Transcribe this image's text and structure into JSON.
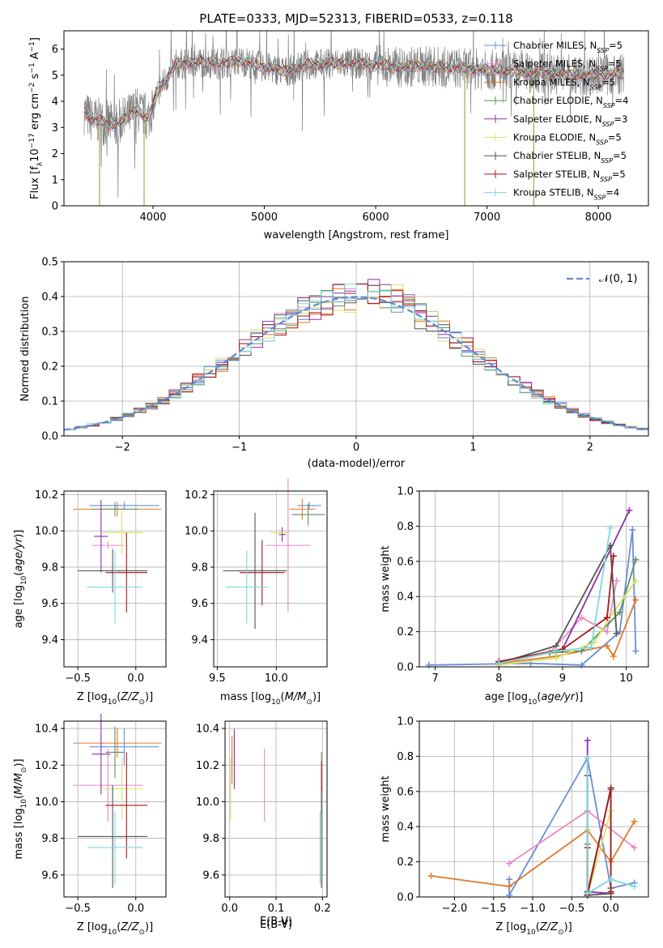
{
  "figure_title": "PLATE=0333, MJD=52313, FIBERID=0533, z=0.118",
  "colors": {
    "Chabrier MILES": "#6a8fd6",
    "Salpeter MILES": "#e88ac1",
    "Kroupa MILES": "#e07a2e",
    "Chabrier ELODIE": "#5e8f5e",
    "Salpeter ELODIE": "#8e2fa8",
    "Kroupa ELODIE": "#d9e36b",
    "Chabrier STELIB": "#555555",
    "Salpeter STELIB": "#a8161b",
    "Kroupa STELIB": "#7fd8dc",
    "data": "#808080",
    "normal": "#5b8bd6"
  },
  "chart_data": [
    {
      "type": "line",
      "panel": "spectrum",
      "xlabel": "wavelength [Angstrom, rest frame]",
      "ylabel": "Flux [f_λ 10^-17 erg cm^-2 s^-1 A^-1]",
      "xlim": [
        3200,
        8450
      ],
      "ylim": [
        0,
        6.7
      ],
      "xticks": [
        4000,
        5000,
        6000,
        7000,
        8000
      ],
      "yticks": [
        0,
        1,
        2,
        3,
        4,
        5,
        6
      ],
      "grid": false,
      "legend_position": "top-right",
      "legend": [
        {
          "name": "Chabrier MILES",
          "nssp": 5
        },
        {
          "name": "Salpeter MILES",
          "nssp": 5
        },
        {
          "name": "Kroupa MILES",
          "nssp": 5
        },
        {
          "name": "Chabrier ELODIE",
          "nssp": 4
        },
        {
          "name": "Salpeter ELODIE",
          "nssp": 3
        },
        {
          "name": "Kroupa ELODIE",
          "nssp": 5
        },
        {
          "name": "Chabrier STELIB",
          "nssp": 5
        },
        {
          "name": "Salpeter STELIB",
          "nssp": 5
        },
        {
          "name": "Kroupa STELIB",
          "nssp": 4
        }
      ],
      "model_continuum": {
        "wavelength": [
          3380,
          3450,
          3550,
          3650,
          3750,
          3850,
          3950,
          4050,
          4200,
          4400,
          4600,
          4800,
          5000,
          5200,
          5400,
          5600,
          5800,
          6000,
          6200,
          6400,
          6600,
          6800,
          7000,
          7200,
          7400,
          7600,
          7800,
          8000,
          8200
        ],
        "flux": [
          3.6,
          3.3,
          3.2,
          3.1,
          3.3,
          3.7,
          3.3,
          4.4,
          5.4,
          5.5,
          5.45,
          5.55,
          5.3,
          5.15,
          5.4,
          5.45,
          5.45,
          5.4,
          5.3,
          5.35,
          5.3,
          5.25,
          5.2,
          5.15,
          5.1,
          5.05,
          5.0,
          5.0,
          5.05
        ]
      },
      "data_spikes_down": [
        3520,
        3920,
        6800,
        7420
      ]
    },
    {
      "type": "histogram",
      "panel": "residuals",
      "xlabel": "(data-model)/error",
      "ylabel": "Normed distribution",
      "xlim": [
        -2.5,
        2.5
      ],
      "ylim": [
        0,
        0.5
      ],
      "xticks": [
        -2,
        -1,
        0,
        1,
        2
      ],
      "yticks": [
        0.0,
        0.1,
        0.2,
        0.3,
        0.4,
        0.5
      ],
      "grid": true,
      "bin_width": 0.1,
      "overlay_label": "𝒩(0, 1)",
      "overlay_mu": 0,
      "overlay_sigma": 1
    },
    {
      "type": "scatter",
      "panel": "age-vs-Z",
      "xlabel": "Z [log10(Z/Z⊙)]",
      "ylabel": "age  [log10(age/yr)]",
      "xlim": [
        -0.62,
        0.26
      ],
      "ylim": [
        9.25,
        10.22
      ],
      "xticks": [
        -0.5,
        0.0
      ],
      "yticks": [
        9.4,
        9.6,
        9.8,
        10.0,
        10.2
      ],
      "grid": true,
      "points": [
        {
          "model": "Chabrier MILES",
          "x": -0.1,
          "y": 10.14,
          "xerr": 0.3,
          "yerr": 0.02
        },
        {
          "model": "Salpeter MILES",
          "x": -0.24,
          "y": 9.92,
          "xerr": 0.14,
          "yerr": 0.02
        },
        {
          "model": "Kroupa MILES",
          "x": -0.16,
          "y": 10.12,
          "xerr": 0.38,
          "yerr": 0.04
        },
        {
          "model": "Chabrier ELODIE",
          "x": -0.18,
          "y": 10.12,
          "xerr": 0.2,
          "yerr": 0.04
        },
        {
          "model": "Salpeter ELODIE",
          "x": -0.3,
          "y": 9.97,
          "xerr": 0.06,
          "yerr": 0.2
        },
        {
          "model": "Kroupa ELODIE",
          "x": -0.12,
          "y": 9.99,
          "xerr": 0.18,
          "yerr": 0.12
        },
        {
          "model": "Chabrier STELIB",
          "x": -0.2,
          "y": 9.78,
          "xerr": 0.3,
          "yerr": 0.12
        },
        {
          "model": "Salpeter STELIB",
          "x": -0.08,
          "y": 9.77,
          "xerr": 0.18,
          "yerr": 0.22
        },
        {
          "model": "Kroupa STELIB",
          "x": -0.18,
          "y": 9.69,
          "xerr": 0.24,
          "yerr": 0.2
        }
      ]
    },
    {
      "type": "scatter",
      "panel": "age-vs-mass",
      "xlabel": "mass [log10(M/M⊙)]",
      "ylabel": "",
      "xlim": [
        9.47,
        10.43
      ],
      "ylim": [
        9.25,
        10.22
      ],
      "xticks": [
        9.5,
        10.0
      ],
      "yticks": [
        9.4,
        9.6,
        9.8,
        10.0,
        10.2
      ],
      "grid": true,
      "points": [
        {
          "model": "Chabrier MILES",
          "x": 10.28,
          "y": 10.14,
          "xerr": 0.1,
          "yerr": 0.02
        },
        {
          "model": "Salpeter MILES",
          "x": 10.1,
          "y": 9.92,
          "xerr": 0.19,
          "yerr": 0.37
        },
        {
          "model": "Kroupa MILES",
          "x": 10.22,
          "y": 10.12,
          "xerr": 0.11,
          "yerr": 0.06
        },
        {
          "model": "Chabrier ELODIE",
          "x": 10.27,
          "y": 10.09,
          "xerr": 0.14,
          "yerr": 0.06
        },
        {
          "model": "Salpeter ELODIE",
          "x": 10.05,
          "y": 9.98,
          "xerr": 0.03,
          "yerr": 0.04
        },
        {
          "model": "Kroupa ELODIE",
          "x": 10.03,
          "y": 9.99,
          "xerr": 0.08,
          "yerr": 0.02
        },
        {
          "model": "Chabrier STELIB",
          "x": 9.82,
          "y": 9.78,
          "xerr": 0.27,
          "yerr": 0.32
        },
        {
          "model": "Salpeter STELIB",
          "x": 9.88,
          "y": 9.77,
          "xerr": 0.19,
          "yerr": 0.18
        },
        {
          "model": "Kroupa STELIB",
          "x": 9.75,
          "y": 9.69,
          "xerr": 0.18,
          "yerr": 0.2
        }
      ]
    },
    {
      "type": "line",
      "panel": "mass-weight-vs-age",
      "xlabel": "age  [log10(age/yr)]",
      "ylabel": "mass weight",
      "xlim": [
        6.75,
        10.35
      ],
      "ylim": [
        0,
        1
      ],
      "xticks": [
        7,
        8,
        9,
        10
      ],
      "yticks": [
        0.0,
        0.2,
        0.4,
        0.6,
        0.8,
        1.0
      ],
      "grid": true,
      "series": [
        {
          "name": "Chabrier MILES",
          "x": [
            6.9,
            8.5,
            9.3,
            9.9,
            10.1,
            10.15
          ],
          "y": [
            0.01,
            0.02,
            0.01,
            0.2,
            0.78,
            0.09
          ]
        },
        {
          "name": "Salpeter MILES",
          "x": [
            8.0,
            8.8,
            9.3,
            9.7,
            9.85
          ],
          "y": [
            0.02,
            0.08,
            0.28,
            0.2,
            0.49
          ]
        },
        {
          "name": "Kroupa MILES",
          "x": [
            8.0,
            8.9,
            9.7,
            9.8,
            10.15
          ],
          "y": [
            0.02,
            0.06,
            0.12,
            0.06,
            0.38
          ]
        },
        {
          "name": "Chabrier ELODIE",
          "x": [
            8.0,
            8.8,
            9.3,
            9.9,
            10.15
          ],
          "y": [
            0.03,
            0.08,
            0.09,
            0.31,
            0.61
          ]
        },
        {
          "name": "Salpeter ELODIE",
          "x": [
            8.0,
            9.0,
            10.05
          ],
          "y": [
            0.02,
            0.1,
            0.89
          ]
        },
        {
          "name": "Kroupa ELODIE",
          "x": [
            8.0,
            8.9,
            9.5,
            9.8,
            10.15
          ],
          "y": [
            0.01,
            0.05,
            0.14,
            0.31,
            0.49
          ]
        },
        {
          "name": "Chabrier STELIB",
          "x": [
            8.0,
            8.9,
            9.75,
            9.85
          ],
          "y": [
            0.02,
            0.12,
            0.69,
            0.19
          ]
        },
        {
          "name": "Salpeter STELIB",
          "x": [
            8.0,
            9.0,
            9.7,
            9.8
          ],
          "y": [
            0.03,
            0.1,
            0.28,
            0.63
          ]
        },
        {
          "name": "Kroupa STELIB",
          "x": [
            8.0,
            8.9,
            9.45,
            9.75
          ],
          "y": [
            0.02,
            0.09,
            0.11,
            0.79
          ]
        }
      ]
    },
    {
      "type": "scatter",
      "panel": "mass-vs-Z",
      "xlabel": "Z [log10(Z/Z⊙)]",
      "ylabel": "mass [log10(M/M⊙)]",
      "xlim": [
        -0.62,
        0.26
      ],
      "ylim": [
        9.48,
        10.44
      ],
      "xticks": [
        -0.5,
        0.0
      ],
      "yticks": [
        9.6,
        9.8,
        10.0,
        10.2,
        10.4
      ],
      "grid": true,
      "points": [
        {
          "model": "Chabrier MILES",
          "x": -0.1,
          "y": 10.3,
          "xerr": 0.3,
          "yerr": 0.1
        },
        {
          "model": "Salpeter MILES",
          "x": -0.24,
          "y": 10.09,
          "xerr": 0.3,
          "yerr": 0.2
        },
        {
          "model": "Kroupa MILES",
          "x": -0.16,
          "y": 10.32,
          "xerr": 0.38,
          "yerr": 0.08
        },
        {
          "model": "Chabrier ELODIE",
          "x": -0.18,
          "y": 10.27,
          "xerr": 0.08,
          "yerr": 0.14
        },
        {
          "model": "Salpeter ELODIE",
          "x": -0.3,
          "y": 10.26,
          "xerr": 0.08,
          "yerr": 0.22
        },
        {
          "model": "Kroupa ELODIE",
          "x": -0.12,
          "y": 10.07,
          "xerr": 0.18,
          "yerr": 0.17
        },
        {
          "model": "Chabrier STELIB",
          "x": -0.2,
          "y": 9.81,
          "xerr": 0.3,
          "yerr": 0.28
        },
        {
          "model": "Salpeter STELIB",
          "x": -0.08,
          "y": 9.98,
          "xerr": 0.18,
          "yerr": 0.29
        },
        {
          "model": "Kroupa STELIB",
          "x": -0.18,
          "y": 9.75,
          "xerr": 0.24,
          "yerr": 0.2
        }
      ]
    },
    {
      "type": "scatter",
      "panel": "mass-vs-EBV",
      "xlabel": "E(B-V)",
      "ylabel": "",
      "xlim": [
        -0.01,
        0.21
      ],
      "ylim": [
        9.48,
        10.44
      ],
      "xticks": [
        0.0,
        0.1,
        0.2
      ],
      "yticks": [
        9.6,
        9.8,
        10.0,
        10.2,
        10.4
      ],
      "grid": true,
      "points": [
        {
          "model": "Chabrier MILES",
          "x": 0.01,
          "y": 10.3,
          "xerr": 0,
          "yerr": 0.1
        },
        {
          "model": "Salpeter MILES",
          "x": 0.075,
          "y": 10.09,
          "xerr": 0,
          "yerr": 0.2
        },
        {
          "model": "Kroupa MILES",
          "x": 0.005,
          "y": 10.23,
          "xerr": 0,
          "yerr": 0.13
        },
        {
          "model": "Chabrier ELODIE",
          "x": 0.198,
          "y": 10.1,
          "xerr": 0,
          "yerr": 0.17
        },
        {
          "model": "Salpeter ELODIE",
          "x": 0.01,
          "y": 10.23,
          "xerr": 0,
          "yerr": 0.16
        },
        {
          "model": "Kroupa ELODIE",
          "x": 0.002,
          "y": 10.07,
          "xerr": 0,
          "yerr": 0.17
        },
        {
          "model": "Chabrier STELIB",
          "x": 0.198,
          "y": 9.81,
          "xerr": 0,
          "yerr": 0.28
        },
        {
          "model": "Salpeter STELIB",
          "x": 0.198,
          "y": 10.14,
          "xerr": 0,
          "yerr": 0.08
        },
        {
          "model": "Kroupa STELIB",
          "x": 0.195,
          "y": 9.75,
          "xerr": 0,
          "yerr": 0.2
        }
      ]
    },
    {
      "type": "line",
      "panel": "mass-weight-vs-Z",
      "xlabel": "Z [log10(Z/Z⊙)]",
      "ylabel": "mass weight",
      "xlim": [
        -2.45,
        0.48
      ],
      "ylim": [
        0,
        1
      ],
      "xticks": [
        -2.0,
        -1.5,
        -1.0,
        -0.5,
        0.0
      ],
      "yticks": [
        0.0,
        0.2,
        0.4,
        0.6,
        0.8,
        1.0
      ],
      "grid": true,
      "series": [
        {
          "name": "Chabrier MILES",
          "x": [
            -1.3,
            -1.3,
            -0.3,
            0.0,
            0.3
          ],
          "y": [
            0.1,
            0.01,
            0.79,
            0.05,
            0.08
          ]
        },
        {
          "name": "Salpeter MILES",
          "x": [
            -1.3,
            -0.3,
            0.3
          ],
          "y": [
            0.19,
            0.49,
            0.28
          ]
        },
        {
          "name": "Kroupa MILES",
          "x": [
            -2.3,
            -1.3,
            -0.3,
            0.0,
            0.3
          ],
          "y": [
            0.12,
            0.06,
            0.38,
            0.2,
            0.43
          ]
        },
        {
          "name": "Chabrier ELODIE",
          "x": [
            -0.3,
            -0.3,
            0.0,
            0.0
          ],
          "y": [
            0.3,
            0.03,
            0.61,
            0.05
          ]
        },
        {
          "name": "Salpeter ELODIE",
          "x": [
            -0.3,
            -0.3,
            0.0
          ],
          "y": [
            0.89,
            0.03,
            0.02
          ]
        },
        {
          "name": "Kroupa ELODIE",
          "x": [
            -0.3,
            -0.3,
            0.0,
            0.0
          ],
          "y": [
            0.38,
            0.01,
            0.49,
            0.02
          ]
        },
        {
          "name": "Chabrier STELIB",
          "x": [
            -0.3,
            -0.3,
            0.0
          ],
          "y": [
            0.69,
            0.01,
            0.02
          ]
        },
        {
          "name": "Salpeter STELIB",
          "x": [
            -0.3,
            -0.3,
            0.0,
            0.0
          ],
          "y": [
            0.28,
            0.01,
            0.62,
            0.03
          ]
        },
        {
          "name": "Kroupa STELIB",
          "x": [
            -0.3,
            -0.3,
            0.0,
            0.3
          ],
          "y": [
            0.79,
            0.02,
            0.1,
            0.06
          ]
        }
      ]
    }
  ]
}
